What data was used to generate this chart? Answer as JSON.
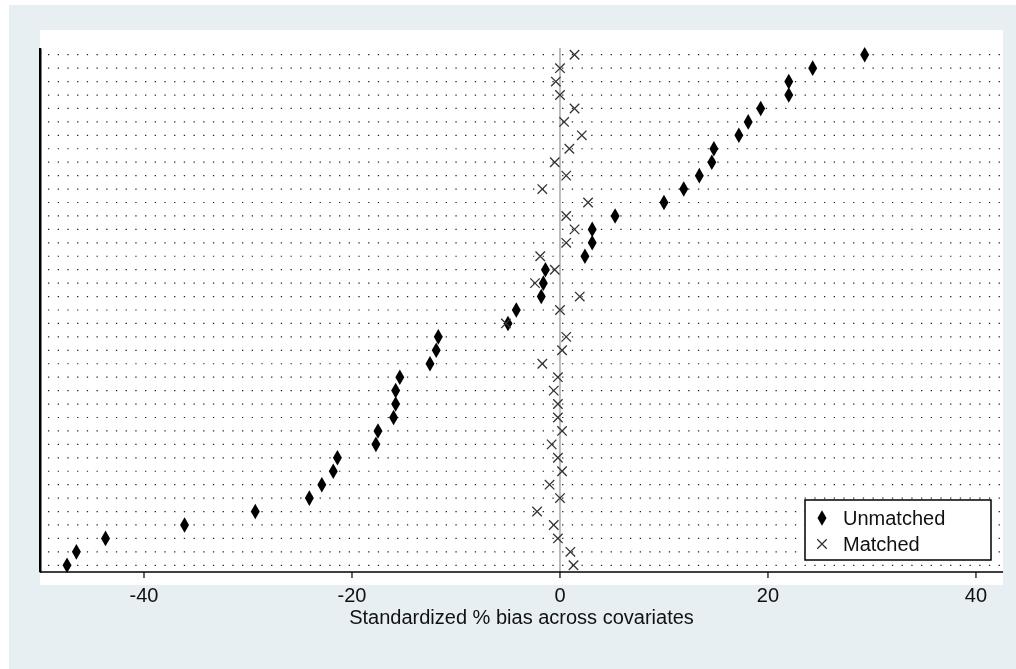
{
  "chart_data": {
    "type": "scatter",
    "orientation": "horizontal",
    "xlabel": "Standardized % bias across covariates",
    "categories": [
      null,
      null,
      null,
      null,
      null,
      null,
      null,
      null,
      null,
      null,
      null,
      null,
      null,
      null,
      null,
      null,
      null,
      null,
      null,
      null,
      null,
      null,
      null,
      null,
      null,
      null,
      null,
      null,
      null,
      null,
      null,
      null,
      null,
      null,
      null,
      null,
      null,
      null,
      null
    ],
    "xlim": [
      -50,
      42.6
    ],
    "xticks": [
      -40,
      -20,
      0,
      20,
      40
    ],
    "grid": "y",
    "legend": "bottom right",
    "ref_lines": [
      {
        "axis": "x",
        "value": 0,
        "color": "#9a9a9a"
      }
    ],
    "series": [
      {
        "name": "Unmatched",
        "color": "#000000",
        "marker": "diamond",
        "values": [
          29.3,
          24.3,
          22.0,
          22.0,
          19.3,
          18.1,
          17.2,
          14.8,
          14.6,
          13.4,
          11.9,
          10.0,
          5.3,
          3.1,
          3.1,
          2.4,
          -1.4,
          -1.6,
          -1.8,
          -4.2,
          -5.0,
          -11.7,
          -11.9,
          -12.5,
          -15.4,
          -15.8,
          -15.8,
          -16.0,
          -17.5,
          -17.7,
          -21.4,
          -21.8,
          -22.9,
          -24.1,
          -29.3,
          -36.1,
          -43.7,
          -46.5,
          -47.4
        ]
      },
      {
        "name": "Matched",
        "color": "#333333",
        "marker": "cross",
        "values": [
          1.4,
          0.0,
          -0.4,
          0.0,
          1.4,
          0.4,
          2.1,
          0.9,
          -0.5,
          0.6,
          -1.7,
          2.7,
          0.6,
          1.4,
          0.6,
          -1.9,
          -0.5,
          -2.4,
          1.9,
          0.0,
          -5.2,
          0.6,
          0.2,
          -1.7,
          -0.2,
          -0.6,
          -0.2,
          -0.2,
          0.2,
          -0.8,
          -0.2,
          0.2,
          -1.0,
          0.0,
          -2.2,
          -0.6,
          -0.2,
          1.0,
          1.3
        ]
      }
    ]
  }
}
